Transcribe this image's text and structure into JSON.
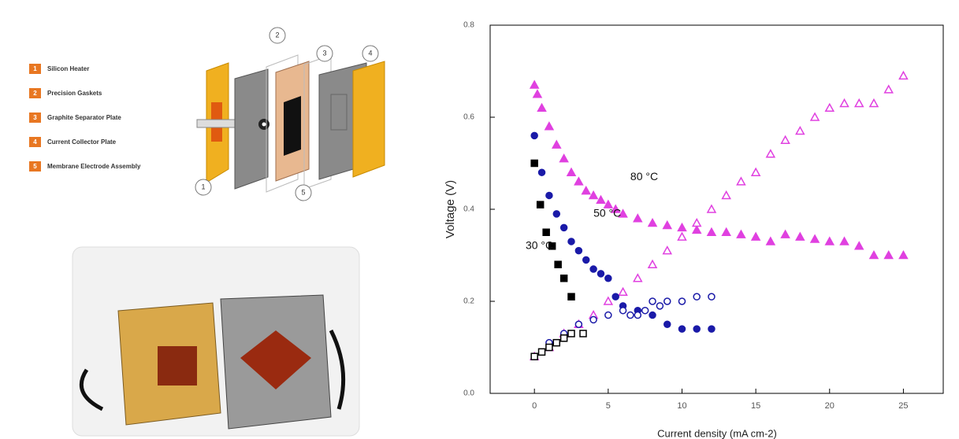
{
  "diagram": {
    "legend": [
      {
        "number": "1",
        "label": "Silicon Heater"
      },
      {
        "number": "2",
        "label": "Precision Gaskets"
      },
      {
        "number": "3",
        "label": "Graphite Separator Plate"
      },
      {
        "number": "4",
        "label": "Current Collector Plate"
      },
      {
        "number": "5",
        "label": "Membrane Electrode Assembly"
      }
    ],
    "callouts": [
      "1",
      "2",
      "3",
      "4",
      "5"
    ]
  },
  "chart_data": {
    "type": "scatter",
    "x_label": "Current density (mA cm-2)",
    "y_label": "Voltage (V)",
    "xlim": [
      -3,
      27.7
    ],
    "xticks": [
      0,
      5,
      10,
      15,
      20,
      25
    ],
    "ylim": [
      0,
      0.8
    ],
    "yticks": [
      {
        "value": 0,
        "label": "0.0"
      },
      0.2,
      0.4,
      0.6,
      0.8
    ],
    "annotations": [
      {
        "text": "80 °C",
        "x": 6.5,
        "y": 0.47
      },
      {
        "text": "50 °C",
        "x": 4,
        "y": 0.39
      },
      {
        "text": "30 °C",
        "x": -0.6,
        "y": 0.32
      }
    ],
    "series": [
      {
        "color": "#e040e0",
        "marker": "triangle",
        "filled": true,
        "x": [
          0,
          0.2,
          0.5,
          1,
          1.5,
          2,
          2.5,
          3,
          3.5,
          4,
          4.5,
          5,
          5.5,
          6,
          7,
          8,
          9,
          10,
          11,
          12,
          13,
          14,
          15,
          16,
          17,
          18,
          19,
          20,
          21,
          22,
          23,
          24,
          25
        ],
        "values": [
          0.67,
          0.65,
          0.62,
          0.58,
          0.54,
          0.51,
          0.48,
          0.46,
          0.44,
          0.43,
          0.42,
          0.41,
          0.4,
          0.39,
          0.38,
          0.37,
          0.365,
          0.36,
          0.355,
          0.35,
          0.35,
          0.345,
          0.34,
          0.33,
          0.345,
          0.34,
          0.335,
          0.33,
          0.33,
          0.32,
          0.3,
          0.3,
          0.3
        ]
      },
      {
        "color": "#e040e0",
        "marker": "triangle",
        "filled": false,
        "x": [
          0,
          1,
          2,
          3,
          4,
          5,
          6,
          7,
          8,
          9,
          10,
          11,
          12,
          13,
          14,
          15,
          16,
          17,
          18,
          19,
          20,
          21,
          22,
          23,
          24,
          25
        ],
        "values": [
          0.08,
          0.1,
          0.13,
          0.15,
          0.17,
          0.2,
          0.22,
          0.25,
          0.28,
          0.31,
          0.34,
          0.37,
          0.4,
          0.43,
          0.46,
          0.48,
          0.52,
          0.55,
          0.57,
          0.6,
          0.62,
          0.63,
          0.63,
          0.63,
          0.66,
          0.69
        ]
      },
      {
        "color": "#1a1aa8",
        "marker": "circle",
        "filled": true,
        "x": [
          0,
          0.5,
          1,
          1.5,
          2,
          2.5,
          3,
          3.5,
          4,
          4.5,
          5,
          5.5,
          6,
          7,
          8,
          9,
          10,
          11,
          12
        ],
        "values": [
          0.56,
          0.48,
          0.43,
          0.39,
          0.36,
          0.33,
          0.31,
          0.29,
          0.27,
          0.26,
          0.25,
          0.21,
          0.19,
          0.18,
          0.17,
          0.15,
          0.14,
          0.14,
          0.14
        ]
      },
      {
        "color": "#1a1aa8",
        "marker": "circle",
        "filled": false,
        "x": [
          0,
          1,
          2,
          3,
          4,
          5,
          6,
          6.5,
          7,
          7.5,
          8,
          8.5,
          9,
          10,
          11,
          12
        ],
        "values": [
          0.08,
          0.11,
          0.13,
          0.15,
          0.16,
          0.17,
          0.18,
          0.17,
          0.17,
          0.18,
          0.2,
          0.19,
          0.2,
          0.2,
          0.21,
          0.21
        ]
      },
      {
        "color": "#000000",
        "marker": "square",
        "filled": true,
        "x": [
          0,
          0.4,
          0.8,
          1.2,
          1.6,
          2,
          2.5
        ],
        "values": [
          0.5,
          0.41,
          0.35,
          0.32,
          0.28,
          0.25,
          0.21
        ]
      },
      {
        "color": "#000000",
        "marker": "square",
        "filled": false,
        "x": [
          0,
          0.5,
          1,
          1.5,
          2,
          2.5,
          3.3
        ],
        "values": [
          0.08,
          0.09,
          0.1,
          0.11,
          0.12,
          0.13,
          0.13
        ]
      }
    ]
  }
}
